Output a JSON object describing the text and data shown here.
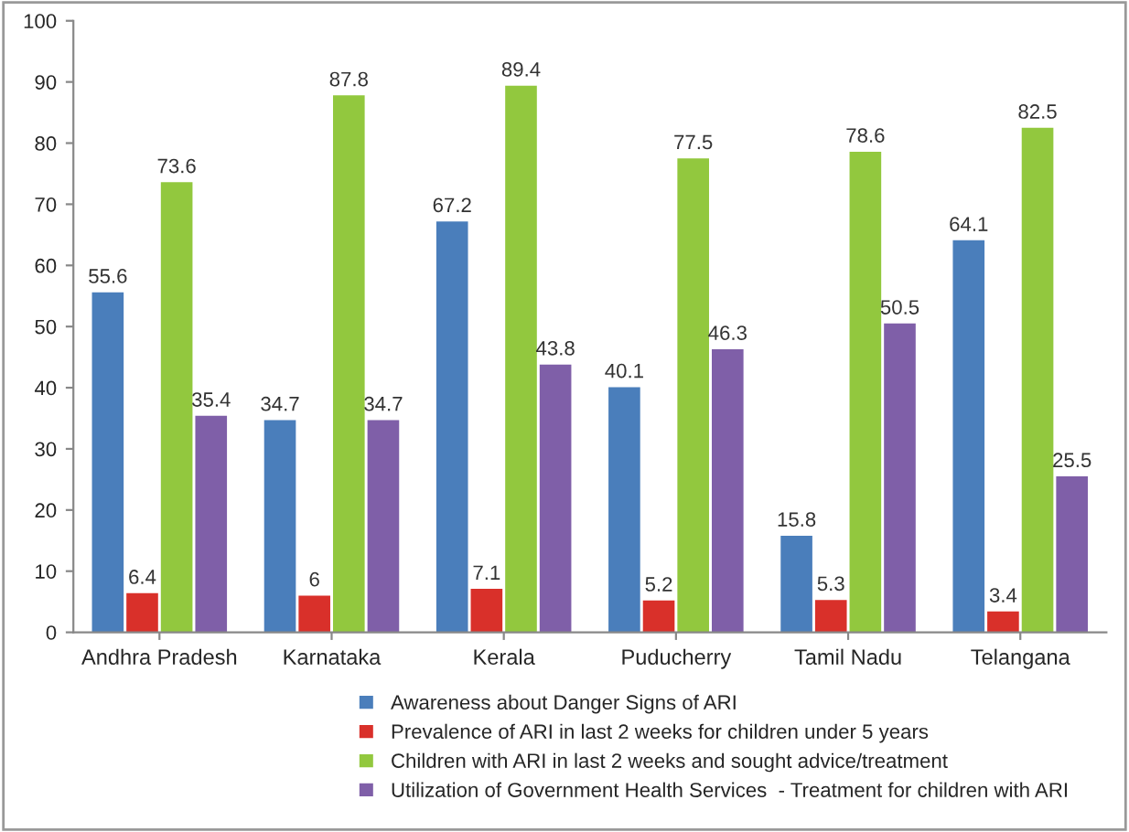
{
  "chart_data": {
    "type": "bar",
    "categories": [
      "Andhra Pradesh",
      "Karnataka",
      "Kerala",
      "Puducherry",
      "Tamil Nadu",
      "Telangana"
    ],
    "series": [
      {
        "name": "Awareness about Danger Signs of ARI",
        "color": "#4a7ebb",
        "values": [
          55.6,
          34.7,
          67.2,
          40.1,
          15.8,
          64.1
        ]
      },
      {
        "name": "Prevalence of ARI in last 2 weeks for children under 5 years",
        "color": "#d9302a",
        "values": [
          6.4,
          6,
          7.1,
          5.2,
          5.3,
          3.4
        ]
      },
      {
        "name": "Children with ARI in last 2 weeks and sought advice/treatment",
        "color": "#92c83e",
        "values": [
          73.6,
          87.8,
          89.4,
          77.5,
          78.6,
          82.5
        ]
      },
      {
        "name": "Utilization of Government Health Services  - Treatment for children with ARI",
        "color": "#7f5fa8",
        "values": [
          35.4,
          34.7,
          43.8,
          46.3,
          50.5,
          25.5
        ]
      }
    ],
    "ylim": [
      0,
      100
    ],
    "yticks": [
      0,
      10,
      20,
      30,
      40,
      50,
      60,
      70,
      80,
      90,
      100
    ],
    "grid": false,
    "data_labels": true,
    "legend": "bottom"
  }
}
